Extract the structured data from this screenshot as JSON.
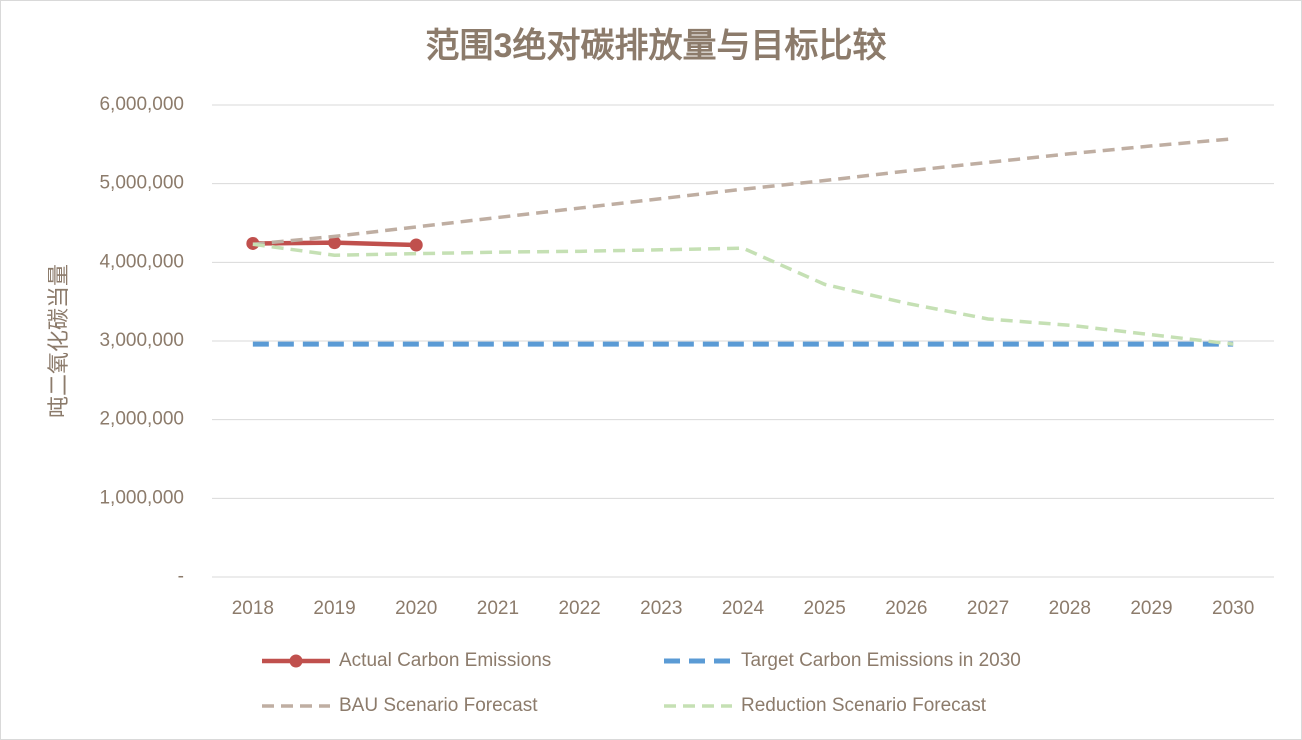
{
  "chart_data": {
    "type": "line",
    "title": "范围3绝对碳排放量与目标比较",
    "y_label": "吨二氧化碳当量",
    "categories": [
      "2018",
      "2019",
      "2020",
      "2021",
      "2022",
      "2023",
      "2024",
      "2025",
      "2026",
      "2027",
      "2028",
      "2029",
      "2030"
    ],
    "series": [
      {
        "name": "Actual Carbon Emissions",
        "color": "#c0504d",
        "style": "solid-markers",
        "values": [
          4240000,
          4250000,
          4220000,
          null,
          null,
          null,
          null,
          null,
          null,
          null,
          null,
          null,
          null
        ]
      },
      {
        "name": "Target Carbon Emissions in 2030",
        "color": "#5b9bd5",
        "style": "dashed-thick",
        "values": [
          2960000,
          2960000,
          2960000,
          2960000,
          2960000,
          2960000,
          2960000,
          2960000,
          2960000,
          2960000,
          2960000,
          2960000,
          2960000
        ]
      },
      {
        "name": "BAU Scenario Forecast",
        "color": "#bfaea2",
        "style": "dashed",
        "values": [
          4230000,
          4330000,
          4450000,
          4570000,
          4690000,
          4810000,
          4930000,
          5040000,
          5160000,
          5270000,
          5380000,
          5480000,
          5570000
        ]
      },
      {
        "name": "Reduction Scenario Forecast",
        "color": "#c5e0b4",
        "style": "dashed",
        "values": [
          4230000,
          4090000,
          4110000,
          4130000,
          4140000,
          4160000,
          4180000,
          3720000,
          3480000,
          3280000,
          3200000,
          3080000,
          2960000
        ]
      }
    ],
    "ylim": [
      0,
      6000000
    ],
    "yticks": [
      {
        "value": 0,
        "label": "-"
      },
      {
        "value": 1000000,
        "label": "1,000,000"
      },
      {
        "value": 2000000,
        "label": "2,000,000"
      },
      {
        "value": 3000000,
        "label": "3,000,000"
      },
      {
        "value": 4000000,
        "label": "4,000,000"
      },
      {
        "value": 5000000,
        "label": "5,000,000"
      },
      {
        "value": 6000000,
        "label": "6,000,000"
      }
    ],
    "grid": true,
    "legend": "bottom"
  }
}
